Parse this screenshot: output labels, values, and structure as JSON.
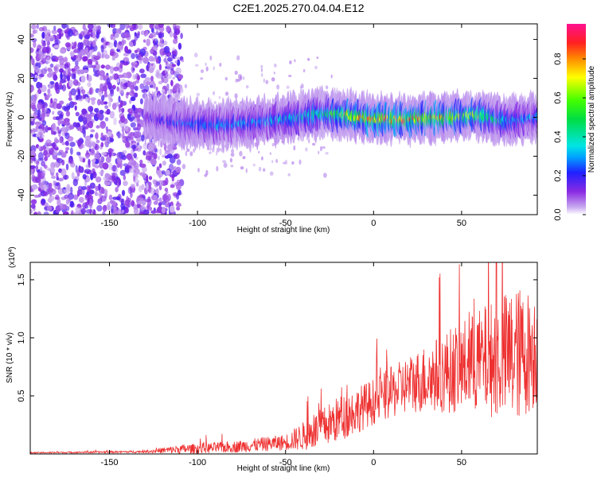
{
  "title": "C2E1.2025.270.04.04.E12",
  "colors": {
    "snr_line": "#ee3030",
    "axis": "#000000",
    "background": "#ffffff"
  },
  "chart_data": [
    {
      "type": "heatmap",
      "title": "C2E1.2025.270.04.04.E12",
      "xlabel": "Height of straight line (km)",
      "ylabel": "Frequency (Hz)",
      "xlim": [
        -195,
        93
      ],
      "ylim": [
        -50,
        48
      ],
      "x_ticks": [
        -150,
        -100,
        -50,
        0,
        50
      ],
      "x_tick_labels": [
        "-150",
        "-100",
        "-50",
        "0",
        "50"
      ],
      "y_ticks": [
        -40,
        -20,
        0,
        20,
        40
      ],
      "y_tick_labels": [
        "-40",
        "-20",
        "0",
        "20",
        "40"
      ],
      "colorbar": {
        "label": "Normalized spectral amplitude",
        "range": [
          0,
          0.98
        ],
        "ticks": [
          0.0,
          0.2,
          0.4,
          0.6,
          0.8
        ],
        "tick_labels": [
          "0.0",
          "0.2",
          "0.4",
          "0.6",
          "0.8"
        ],
        "colormap": "rainbow (violet-blue-cyan-green-yellow-red-magenta)"
      },
      "description_of_data": {
        "noise_region_x": [
          -195,
          -117
        ],
        "noise_level": 0.15,
        "band_center_track": [
          {
            "x": -128,
            "y": 0,
            "amp": 0.15
          },
          {
            "x": -110,
            "y": -3,
            "amp": 0.25
          },
          {
            "x": -90,
            "y": -4,
            "amp": 0.3
          },
          {
            "x": -70,
            "y": -3,
            "amp": 0.3
          },
          {
            "x": -50,
            "y": -1,
            "amp": 0.35
          },
          {
            "x": -30,
            "y": 2,
            "amp": 0.45
          },
          {
            "x": -15,
            "y": 1,
            "amp": 0.7
          },
          {
            "x": 0,
            "y": -1,
            "amp": 0.8
          },
          {
            "x": 20,
            "y": -1,
            "amp": 0.8
          },
          {
            "x": 40,
            "y": 0,
            "amp": 0.75
          },
          {
            "x": 60,
            "y": 1,
            "amp": 0.6
          },
          {
            "x": 75,
            "y": -2,
            "amp": 0.35
          },
          {
            "x": 93,
            "y": 0,
            "amp": 0.3
          }
        ]
      }
    },
    {
      "type": "line",
      "xlabel": "Height of straight line (km)",
      "ylabel": "SNR (10 * v/v)",
      "y_multiplier_label": "(x10",
      "y_multiplier_exp": "4",
      "y_multiplier_close": ")",
      "xlim": [
        -195,
        93
      ],
      "ylim": [
        0,
        1.65
      ],
      "x_ticks": [
        -150,
        -100,
        -50,
        0,
        50
      ],
      "x_tick_labels": [
        "-150",
        "-100",
        "-50",
        "0",
        "50"
      ],
      "y_ticks": [
        0.5,
        1.0,
        1.5
      ],
      "y_tick_labels": [
        "0.5",
        "1.0",
        "1.5"
      ],
      "envelope": [
        {
          "x": -195,
          "base": 0.01,
          "spread": 0.005
        },
        {
          "x": -130,
          "base": 0.02,
          "spread": 0.01
        },
        {
          "x": -110,
          "base": 0.04,
          "spread": 0.04
        },
        {
          "x": -80,
          "base": 0.06,
          "spread": 0.05
        },
        {
          "x": -50,
          "base": 0.1,
          "spread": 0.07
        },
        {
          "x": -35,
          "base": 0.18,
          "spread": 0.15
        },
        {
          "x": -20,
          "base": 0.3,
          "spread": 0.2
        },
        {
          "x": 0,
          "base": 0.45,
          "spread": 0.2
        },
        {
          "x": 20,
          "base": 0.6,
          "spread": 0.25
        },
        {
          "x": 40,
          "base": 0.7,
          "spread": 0.35
        },
        {
          "x": 60,
          "base": 0.8,
          "spread": 0.45
        },
        {
          "x": 80,
          "base": 0.85,
          "spread": 0.6
        },
        {
          "x": 93,
          "base": 0.9,
          "spread": 0.5
        }
      ]
    }
  ]
}
